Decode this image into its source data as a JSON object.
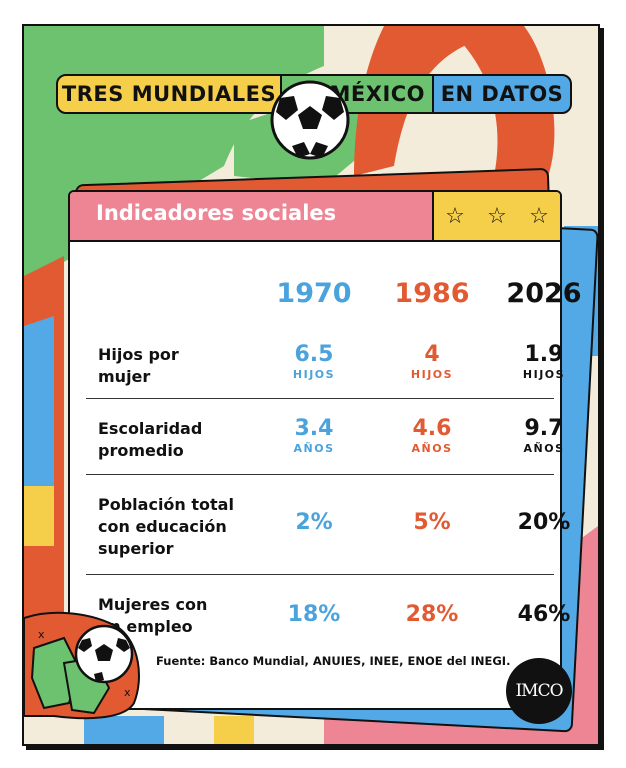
{
  "title": {
    "part1": "TRES MUNDIALES",
    "part2": "DE MÉXICO",
    "part3": "EN DATOS"
  },
  "card": {
    "heading": "Indicadores sociales",
    "stars": [
      "☆",
      "☆",
      "☆"
    ]
  },
  "years": [
    "1970",
    "1986",
    "2026"
  ],
  "rows": [
    {
      "label1": "Hijos por",
      "label2": "mujer",
      "label3": "",
      "values": [
        "6.5",
        "4",
        "1.9"
      ],
      "unit": "HIJOS"
    },
    {
      "label1": "Escolaridad",
      "label2": "promedio",
      "label3": "",
      "values": [
        "3.4",
        "4.6",
        "9.7"
      ],
      "unit": "AÑOS"
    },
    {
      "label1": "Población total",
      "label2": "con educación",
      "label3": "superior",
      "values": [
        "2%",
        "5%",
        "20%"
      ],
      "unit": ""
    },
    {
      "label1": "Mujeres con",
      "label2": "un empleo",
      "label3": "",
      "values": [
        "18%",
        "28%",
        "46%"
      ],
      "unit": ""
    }
  ],
  "source": "Fuente: Banco Mundial, ANUIES, INEE, ENOE del INEGI.",
  "logo": "IMCO",
  "icons": [
    "soccer-ball-icon",
    "goalkeeper-gloves-icon",
    "star-icon"
  ],
  "colors": {
    "background": "#f3ecda",
    "green": "#6cc26f",
    "orange": "#e25a32",
    "blue": "#52a9e6",
    "yellow": "#f6cf4a",
    "pink": "#ee8594",
    "year1970": "#4aa3dd",
    "year1986": "#e25a32",
    "year2026": "#111111"
  }
}
